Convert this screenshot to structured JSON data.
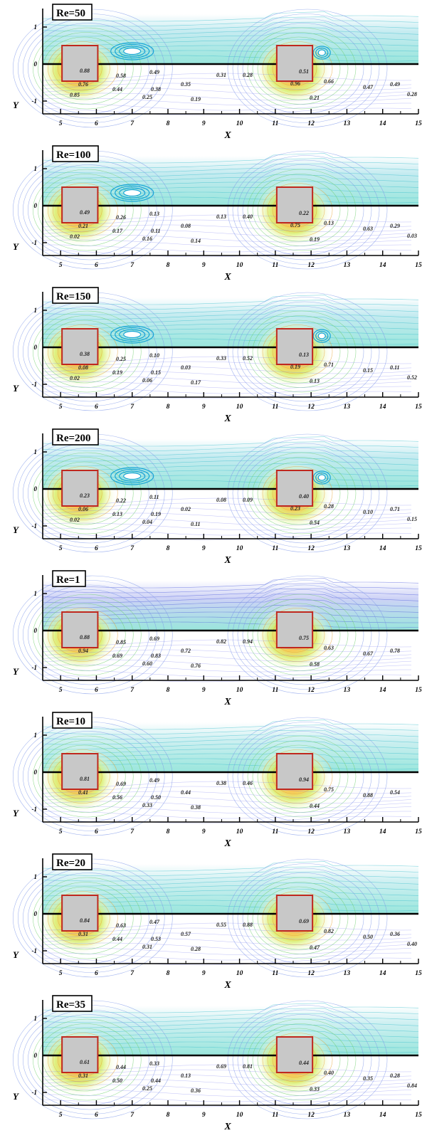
{
  "figure": {
    "xlabel": "X",
    "ylabel": "Y",
    "x_ticks": [
      "5",
      "6",
      "7",
      "8",
      "9",
      "10",
      "11",
      "12",
      "13",
      "14",
      "15"
    ],
    "y_ticks": [
      "1",
      "0",
      "-1"
    ],
    "panels": [
      {
        "title": "Re=50",
        "labels": [
          "0.88",
          "0.58",
          "0.49",
          "0.31",
          "0.28",
          "0.51",
          "0.66",
          "0.47",
          "0.49",
          "0.76",
          "0.44",
          "0.38",
          "0.35",
          "0.25",
          "0.19",
          "0.21",
          "0.28",
          "0.96",
          "0.85"
        ],
        "sep": true,
        "eddy2": true
      },
      {
        "title": "Re=100",
        "labels": [
          "0.49",
          "0.26",
          "0.13",
          "0.13",
          "0.40",
          "0.22",
          "0.13",
          "0.63",
          "0.29",
          "0.21",
          "0.17",
          "0.11",
          "0.08",
          "0.16",
          "0.14",
          "0.19",
          "0.03",
          "0.75",
          "0.02"
        ],
        "sep": true,
        "eddy2": false
      },
      {
        "title": "Re=150",
        "labels": [
          "0.38",
          "0.25",
          "0.10",
          "0.33",
          "0.52",
          "0.13",
          "0.71",
          "0.15",
          "0.11",
          "0.08",
          "0.19",
          "0.15",
          "0.03",
          "0.06",
          "0.17",
          "0.13",
          "0.52",
          "0.19",
          "0.02"
        ],
        "sep": true,
        "eddy2": true
      },
      {
        "title": "Re=200",
        "labels": [
          "0.23",
          "0.22",
          "0.11",
          "0.08",
          "0.09",
          "0.40",
          "0.28",
          "0.10",
          "0.71",
          "0.06",
          "0.13",
          "0.19",
          "0.02",
          "0.04",
          "0.11",
          "0.54",
          "0.15",
          "0.23",
          "0.02"
        ],
        "sep": true,
        "eddy2": true
      },
      {
        "title": "Re=1",
        "labels": [
          "0.88",
          "0.85",
          "0.69",
          "0.82",
          "0.94",
          "0.75",
          "0.63",
          "0.67",
          "0.78",
          "0.94",
          "0.69",
          "0.83",
          "0.72",
          "0.60",
          "0.76",
          "0.58"
        ],
        "sep": false,
        "eddy2": false
      },
      {
        "title": "Re=10",
        "labels": [
          "0.81",
          "0.69",
          "0.49",
          "0.38",
          "0.46",
          "0.94",
          "0.75",
          "0.88",
          "0.54",
          "0.41",
          "0.56",
          "0.50",
          "0.44",
          "0.33",
          "0.38",
          "0.44"
        ],
        "sep": false,
        "eddy2": false
      },
      {
        "title": "Re=20",
        "labels": [
          "0.84",
          "0.63",
          "0.47",
          "0.55",
          "0.88",
          "0.69",
          "0.82",
          "0.50",
          "0.36",
          "0.31",
          "0.44",
          "0.53",
          "0.57",
          "0.31",
          "0.28",
          "0.47",
          "0.40"
        ],
        "sep": false,
        "eddy2": false
      },
      {
        "title": "Re=35",
        "labels": [
          "0.61",
          "0.44",
          "0.33",
          "0.69",
          "0.81",
          "0.44",
          "0.40",
          "0.35",
          "0.28",
          "0.31",
          "0.50",
          "0.44",
          "0.13",
          "0.25",
          "0.36",
          "0.33",
          "0.84"
        ],
        "sep": false,
        "eddy2": false
      }
    ]
  }
}
